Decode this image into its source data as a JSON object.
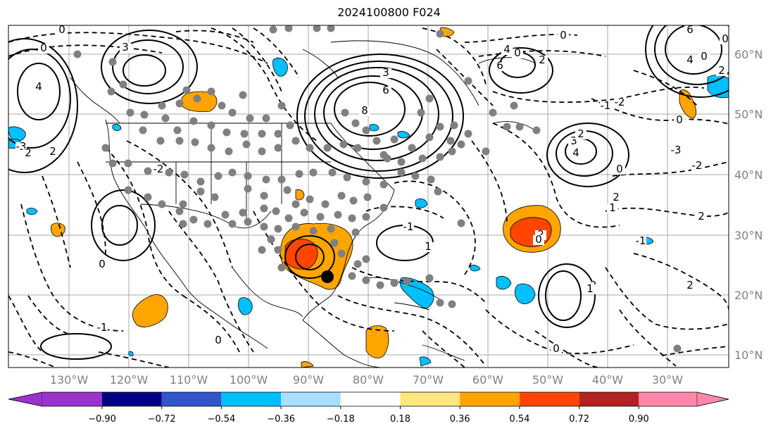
{
  "title": "2024100800 F024",
  "longitude_labels": [
    "130°W",
    "120°W",
    "110°W",
    "100°W",
    "90°W",
    "80°W",
    "70°W",
    "60°W",
    "50°W",
    "40°W",
    "30°W"
  ],
  "latitude_labels": [
    "60°N",
    "50°N",
    "40°N",
    "30°N",
    "20°N",
    "10°N"
  ],
  "colorbar": {
    "ticks": [
      "−0.90",
      "−0.72",
      "−0.54",
      "−0.36",
      "−0.18",
      "0.18",
      "0.36",
      "0.54",
      "0.72",
      "0.90"
    ],
    "colors": [
      "#9933cc",
      "#000080",
      "#3355cc",
      "#00bfff",
      "#aadeff",
      "#ffffff",
      "#ffe680",
      "#ffa500",
      "#ff4500",
      "#b22222",
      "#ff88aa"
    ]
  },
  "contour_labels": [
    "0",
    "3",
    "4",
    "2",
    "0",
    "6",
    "8",
    "3",
    "6",
    "4",
    "2",
    "6",
    "4",
    "2",
    "0",
    "-1",
    "1",
    "2",
    "3",
    "4",
    "-3",
    "2",
    "1",
    "-1",
    "-2",
    "2",
    "0",
    "0",
    "-1",
    "-2",
    "0",
    "0",
    "0",
    "2",
    "-3",
    "2",
    "-2",
    "0",
    "-1",
    "1",
    "0",
    "0",
    "-2",
    "2",
    "2",
    "0"
  ],
  "colors": {
    "grid": "#aaaaaa",
    "land_border": "#000000",
    "positive_fill": "#ffa500",
    "strong_positive_fill": "#ff4500",
    "negative_fill": "#00bfff",
    "dot": "#808080",
    "marker": "#000000"
  }
}
